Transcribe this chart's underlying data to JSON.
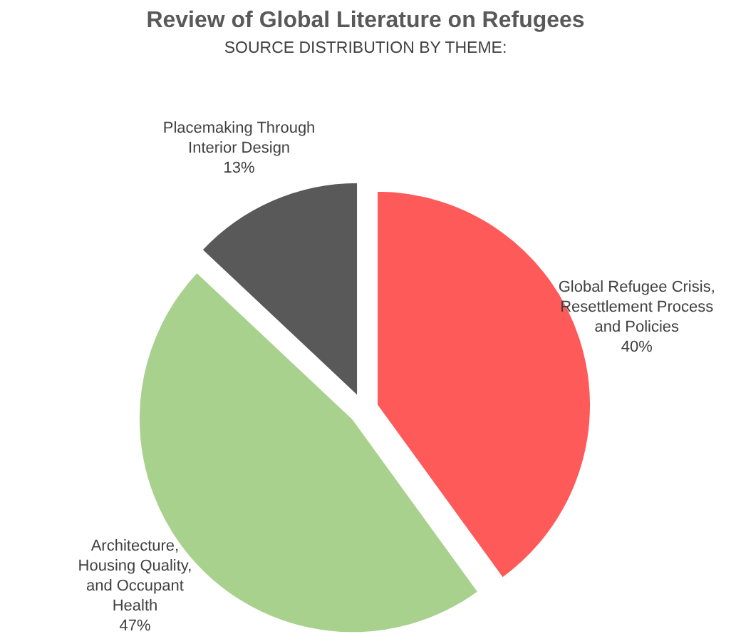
{
  "chart_data": {
    "type": "pie",
    "title": "Review of Global Literature on Refugees",
    "subtitle": "SOURCE DISTRIBUTION BY THEME:",
    "categories": [
      "Global Refugee Crisis,\nResettlement Process\nand Policies",
      "Architecture,\nHousing Quality,\nand Occupant\nHealth",
      "Placemaking Through\nInterior Design"
    ],
    "values": [
      40,
      47,
      13
    ],
    "colors": [
      "#ff5a5a",
      "#a9d18e",
      "#595959"
    ],
    "value_labels": [
      "40%",
      "47%",
      "13%"
    ]
  }
}
